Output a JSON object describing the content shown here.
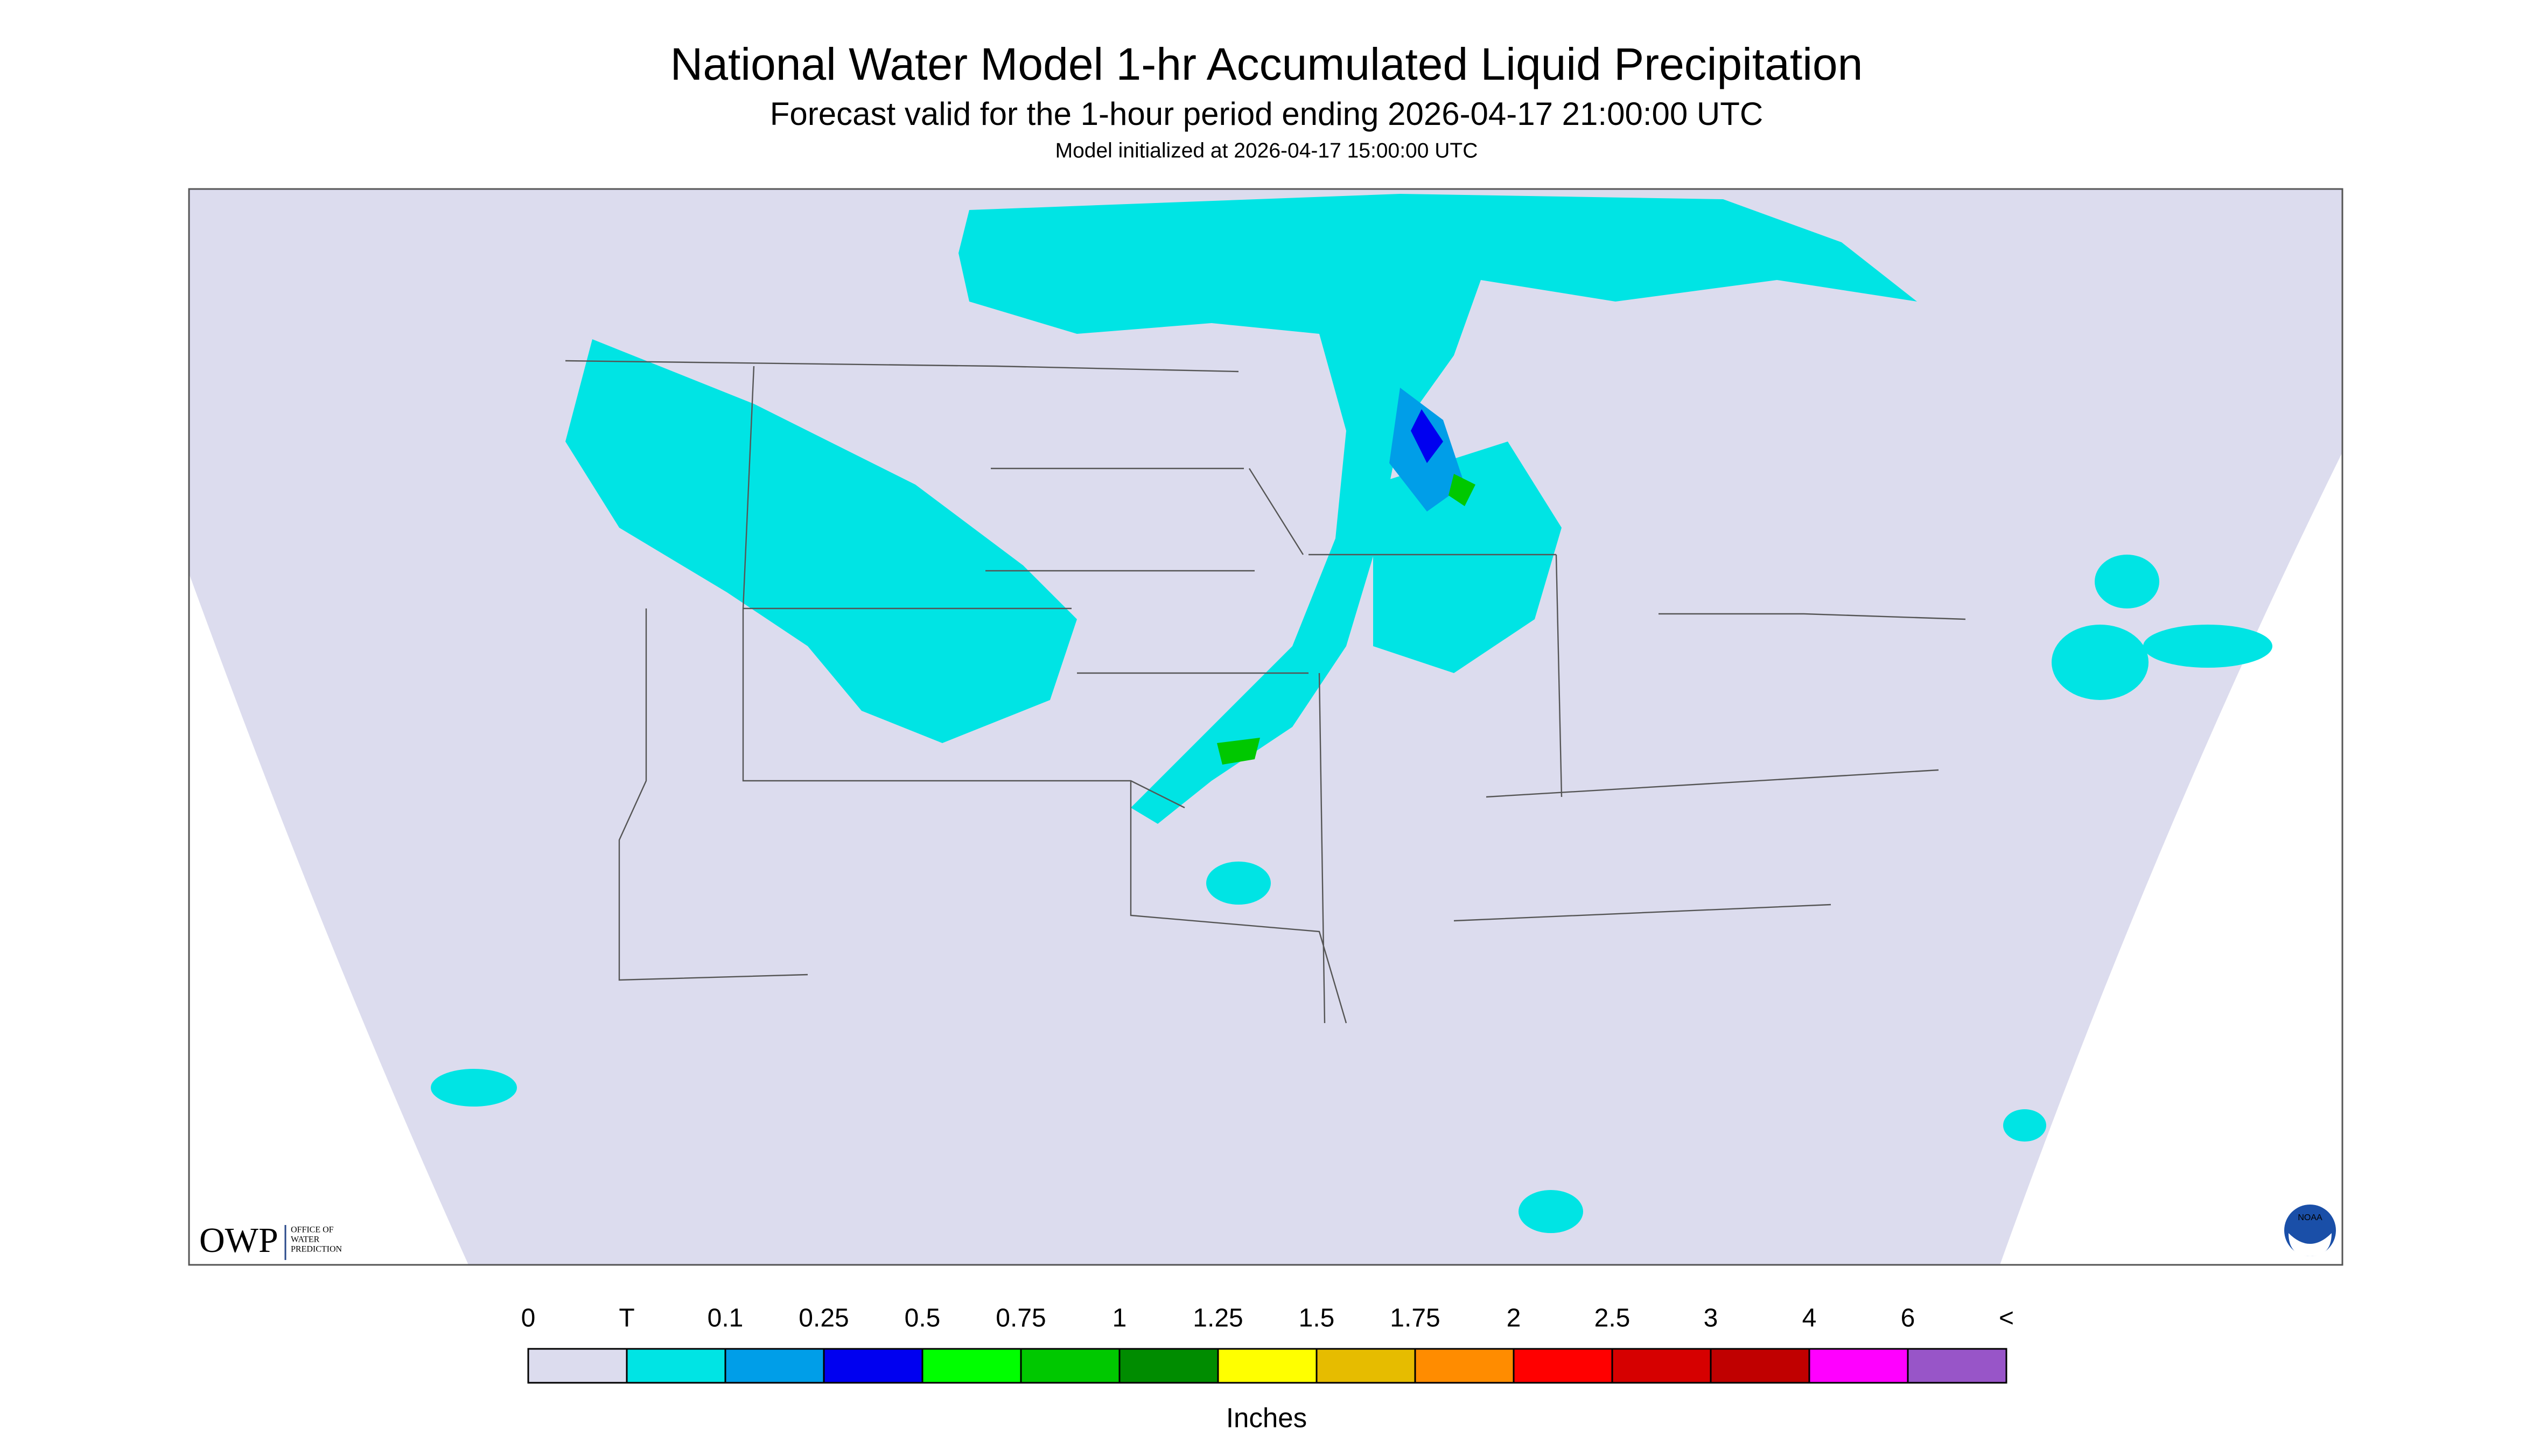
{
  "header": {
    "title": "National Water Model 1-hr Accumulated Liquid Precipitation",
    "subtitle": "Forecast valid for the 1-hour period ending 2026-04-17 21:00:00 UTC",
    "note": "Model initialized at 2026-04-17 15:00:00 UTC"
  },
  "map": {
    "logo_left": "OWP",
    "logo_left_caption": [
      "OFFICE OF",
      "WATER",
      "PREDICTION"
    ],
    "logo_right": "NOAA"
  },
  "legend": {
    "labels": [
      "0",
      "T",
      "0.1",
      "0.25",
      "0.5",
      "0.75",
      "1",
      "1.25",
      "1.5",
      "1.75",
      "2",
      "2.5",
      "3",
      "4",
      "6",
      "<"
    ],
    "colors": [
      "#dcdcee",
      "#00e4e4",
      "#009ee8",
      "#0000f0",
      "#00ff00",
      "#00c800",
      "#008c00",
      "#ffff00",
      "#e6bc00",
      "#ff8c00",
      "#ff0000",
      "#d60000",
      "#c00000",
      "#ff00ff",
      "#9855c8"
    ],
    "unit": "Inches"
  }
}
